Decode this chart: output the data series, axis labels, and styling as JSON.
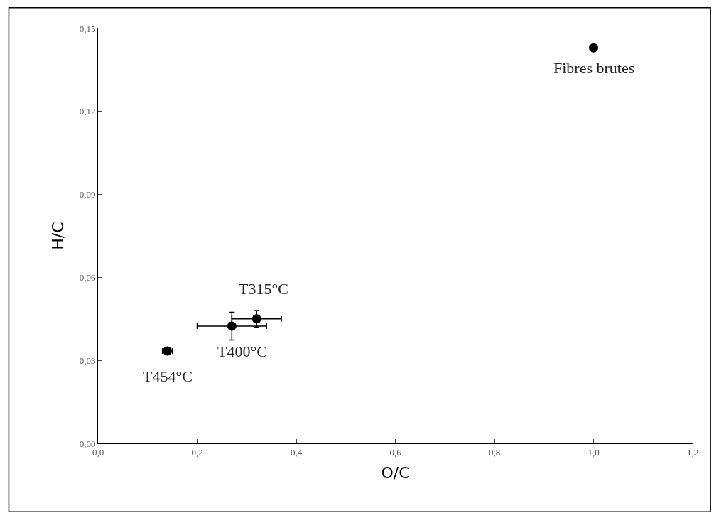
{
  "chart_data": {
    "type": "scatter",
    "xlabel": "O/C",
    "ylabel": "H/C",
    "x": [
      1.0,
      0.32,
      0.27,
      0.14
    ],
    "series": [
      {
        "color": "#000000",
        "values": [
          0.143,
          0.045,
          0.0424,
          0.0334
        ],
        "xerrors": [
          null,
          0.05,
          0.07,
          0.01
        ],
        "errors": [
          null,
          0.003,
          0.005,
          null
        ]
      }
    ],
    "marker": "circle",
    "annotations": [
      {
        "text": "Fibres brutes",
        "x": 1.0,
        "y": 0.143
      },
      {
        "text": "T315°C",
        "x": 0.32,
        "y": 0.045
      },
      {
        "text": "T400°C",
        "x": 0.27,
        "y": 0.0424
      },
      {
        "text": "T454°C",
        "x": 0.14,
        "y": 0.0334
      }
    ],
    "xlim": [
      0,
      1.2
    ],
    "ylim": [
      0,
      0.15
    ],
    "xticks": [
      {
        "value": 0,
        "label": "0,0"
      },
      {
        "value": 0.2,
        "label": "0,2"
      },
      {
        "value": 0.4,
        "label": "0,4"
      },
      {
        "value": 0.6,
        "label": "0,6"
      },
      {
        "value": 0.8,
        "label": "0,8"
      },
      {
        "value": 1.0,
        "label": "1,0"
      },
      {
        "value": 1.2,
        "label": "1,2"
      }
    ],
    "yticks": [
      {
        "value": 0,
        "label": "0,00"
      },
      {
        "value": 0.03,
        "label": "0,03"
      },
      {
        "value": 0.06,
        "label": "0,06"
      },
      {
        "value": 0.09,
        "label": "0,09"
      },
      {
        "value": 0.12,
        "label": "0,12"
      },
      {
        "value": 0.15,
        "label": "0,15"
      }
    ]
  }
}
